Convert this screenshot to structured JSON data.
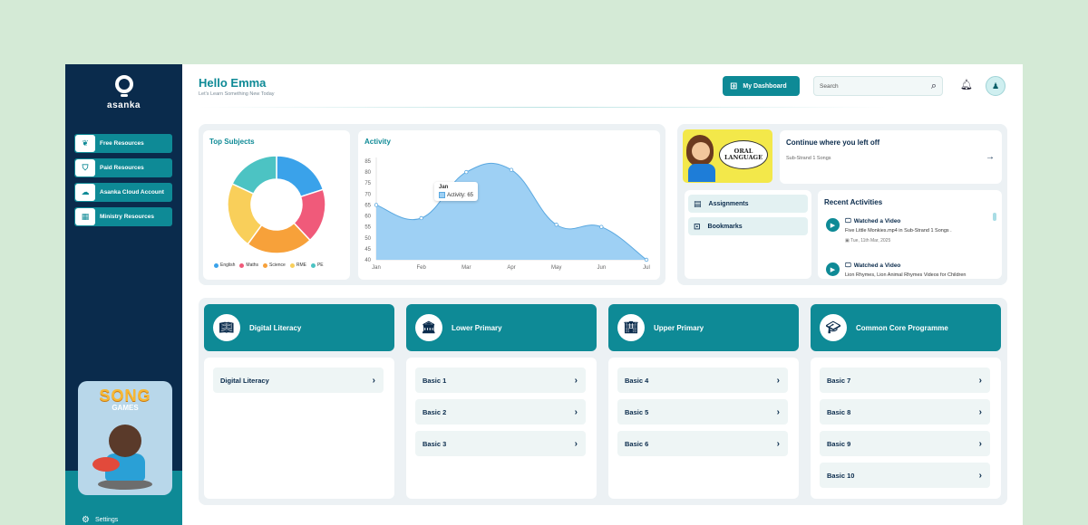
{
  "sidebar": {
    "logo_text": "asanka",
    "items": [
      {
        "label": "Free Resources",
        "icon": "leaf-icon"
      },
      {
        "label": "Paid Resources",
        "icon": "bag-icon"
      },
      {
        "label": "Asanka Cloud Account",
        "icon": "cloud-icon"
      },
      {
        "label": "Ministry Resources",
        "icon": "building-icon"
      }
    ],
    "promo": {
      "title": "SONG",
      "subtitle": "GAMES"
    },
    "settings_label": "Settings"
  },
  "header": {
    "greeting": "Hello Emma",
    "subtitle": "Let's Learn Something New Today",
    "dashboard_button": "My Dashboard",
    "search_placeholder": "Search"
  },
  "top_subjects": {
    "title": "Top Subjects",
    "legend": [
      {
        "name": "English",
        "color": "#3aa2ea"
      },
      {
        "name": "Maths",
        "color": "#f05a7a"
      },
      {
        "name": "Science",
        "color": "#f7a13a"
      },
      {
        "name": "RME",
        "color": "#f9cf5a"
      },
      {
        "name": "PE",
        "color": "#4cc3c3"
      }
    ]
  },
  "chart_data": [
    {
      "type": "pie",
      "title": "Top Subjects",
      "categories": [
        "English",
        "Maths",
        "Science",
        "RME",
        "PE"
      ],
      "values": [
        20,
        18,
        22,
        22,
        18
      ],
      "colors": [
        "#3aa2ea",
        "#f05a7a",
        "#f7a13a",
        "#f9cf5a",
        "#4cc3c3"
      ],
      "donut": true
    },
    {
      "type": "area",
      "title": "Activity",
      "categories": [
        "Jan",
        "Feb",
        "Mar",
        "Apr",
        "May",
        "Jun",
        "Jul"
      ],
      "series": [
        {
          "name": "Activity",
          "values": [
            65,
            59,
            80,
            81,
            56,
            55,
            40
          ]
        }
      ],
      "ylim": [
        40,
        85
      ],
      "yticks": [
        40,
        45,
        50,
        55,
        60,
        65,
        70,
        75,
        80,
        85
      ],
      "tooltip": {
        "title": "Jan",
        "label": "Activity: 65"
      }
    }
  ],
  "activity": {
    "title": "Activity"
  },
  "oral_card": {
    "text": "ORAL LANGUAGE"
  },
  "continue": {
    "title": "Continue where you left off",
    "subtitle": "Sub-Strand 1 Songs"
  },
  "links": [
    {
      "label": "Assignments",
      "icon": "clipboard-icon"
    },
    {
      "label": "Bookmarks",
      "icon": "bookmark-icon"
    }
  ],
  "recent": {
    "title": "Recent Activities",
    "items": [
      {
        "title": "Watched a Video",
        "desc": "Five Little Monkies.mp4 in Sub-Strand 1 Songs .",
        "date": "Tue, 11th Mar, 2025"
      },
      {
        "title": "Watched a Video",
        "desc": "Lion Rhymes, Lion Animal Rhymes Videos for Children"
      }
    ]
  },
  "columns": [
    {
      "title": "Digital Literacy",
      "icon": "book-icon",
      "grades": [
        "Digital Literacy"
      ]
    },
    {
      "title": "Lower Primary",
      "icon": "school-icon",
      "grades": [
        "Basic 1",
        "Basic 2",
        "Basic 3"
      ]
    },
    {
      "title": "Upper Primary",
      "icon": "building-icon",
      "grades": [
        "Basic 4",
        "Basic 5",
        "Basic 6"
      ]
    },
    {
      "title": "Common Core Programme",
      "icon": "graduation-cap-icon",
      "grades": [
        "Basic 7",
        "Basic 8",
        "Basic 9",
        "Basic 10"
      ]
    }
  ]
}
